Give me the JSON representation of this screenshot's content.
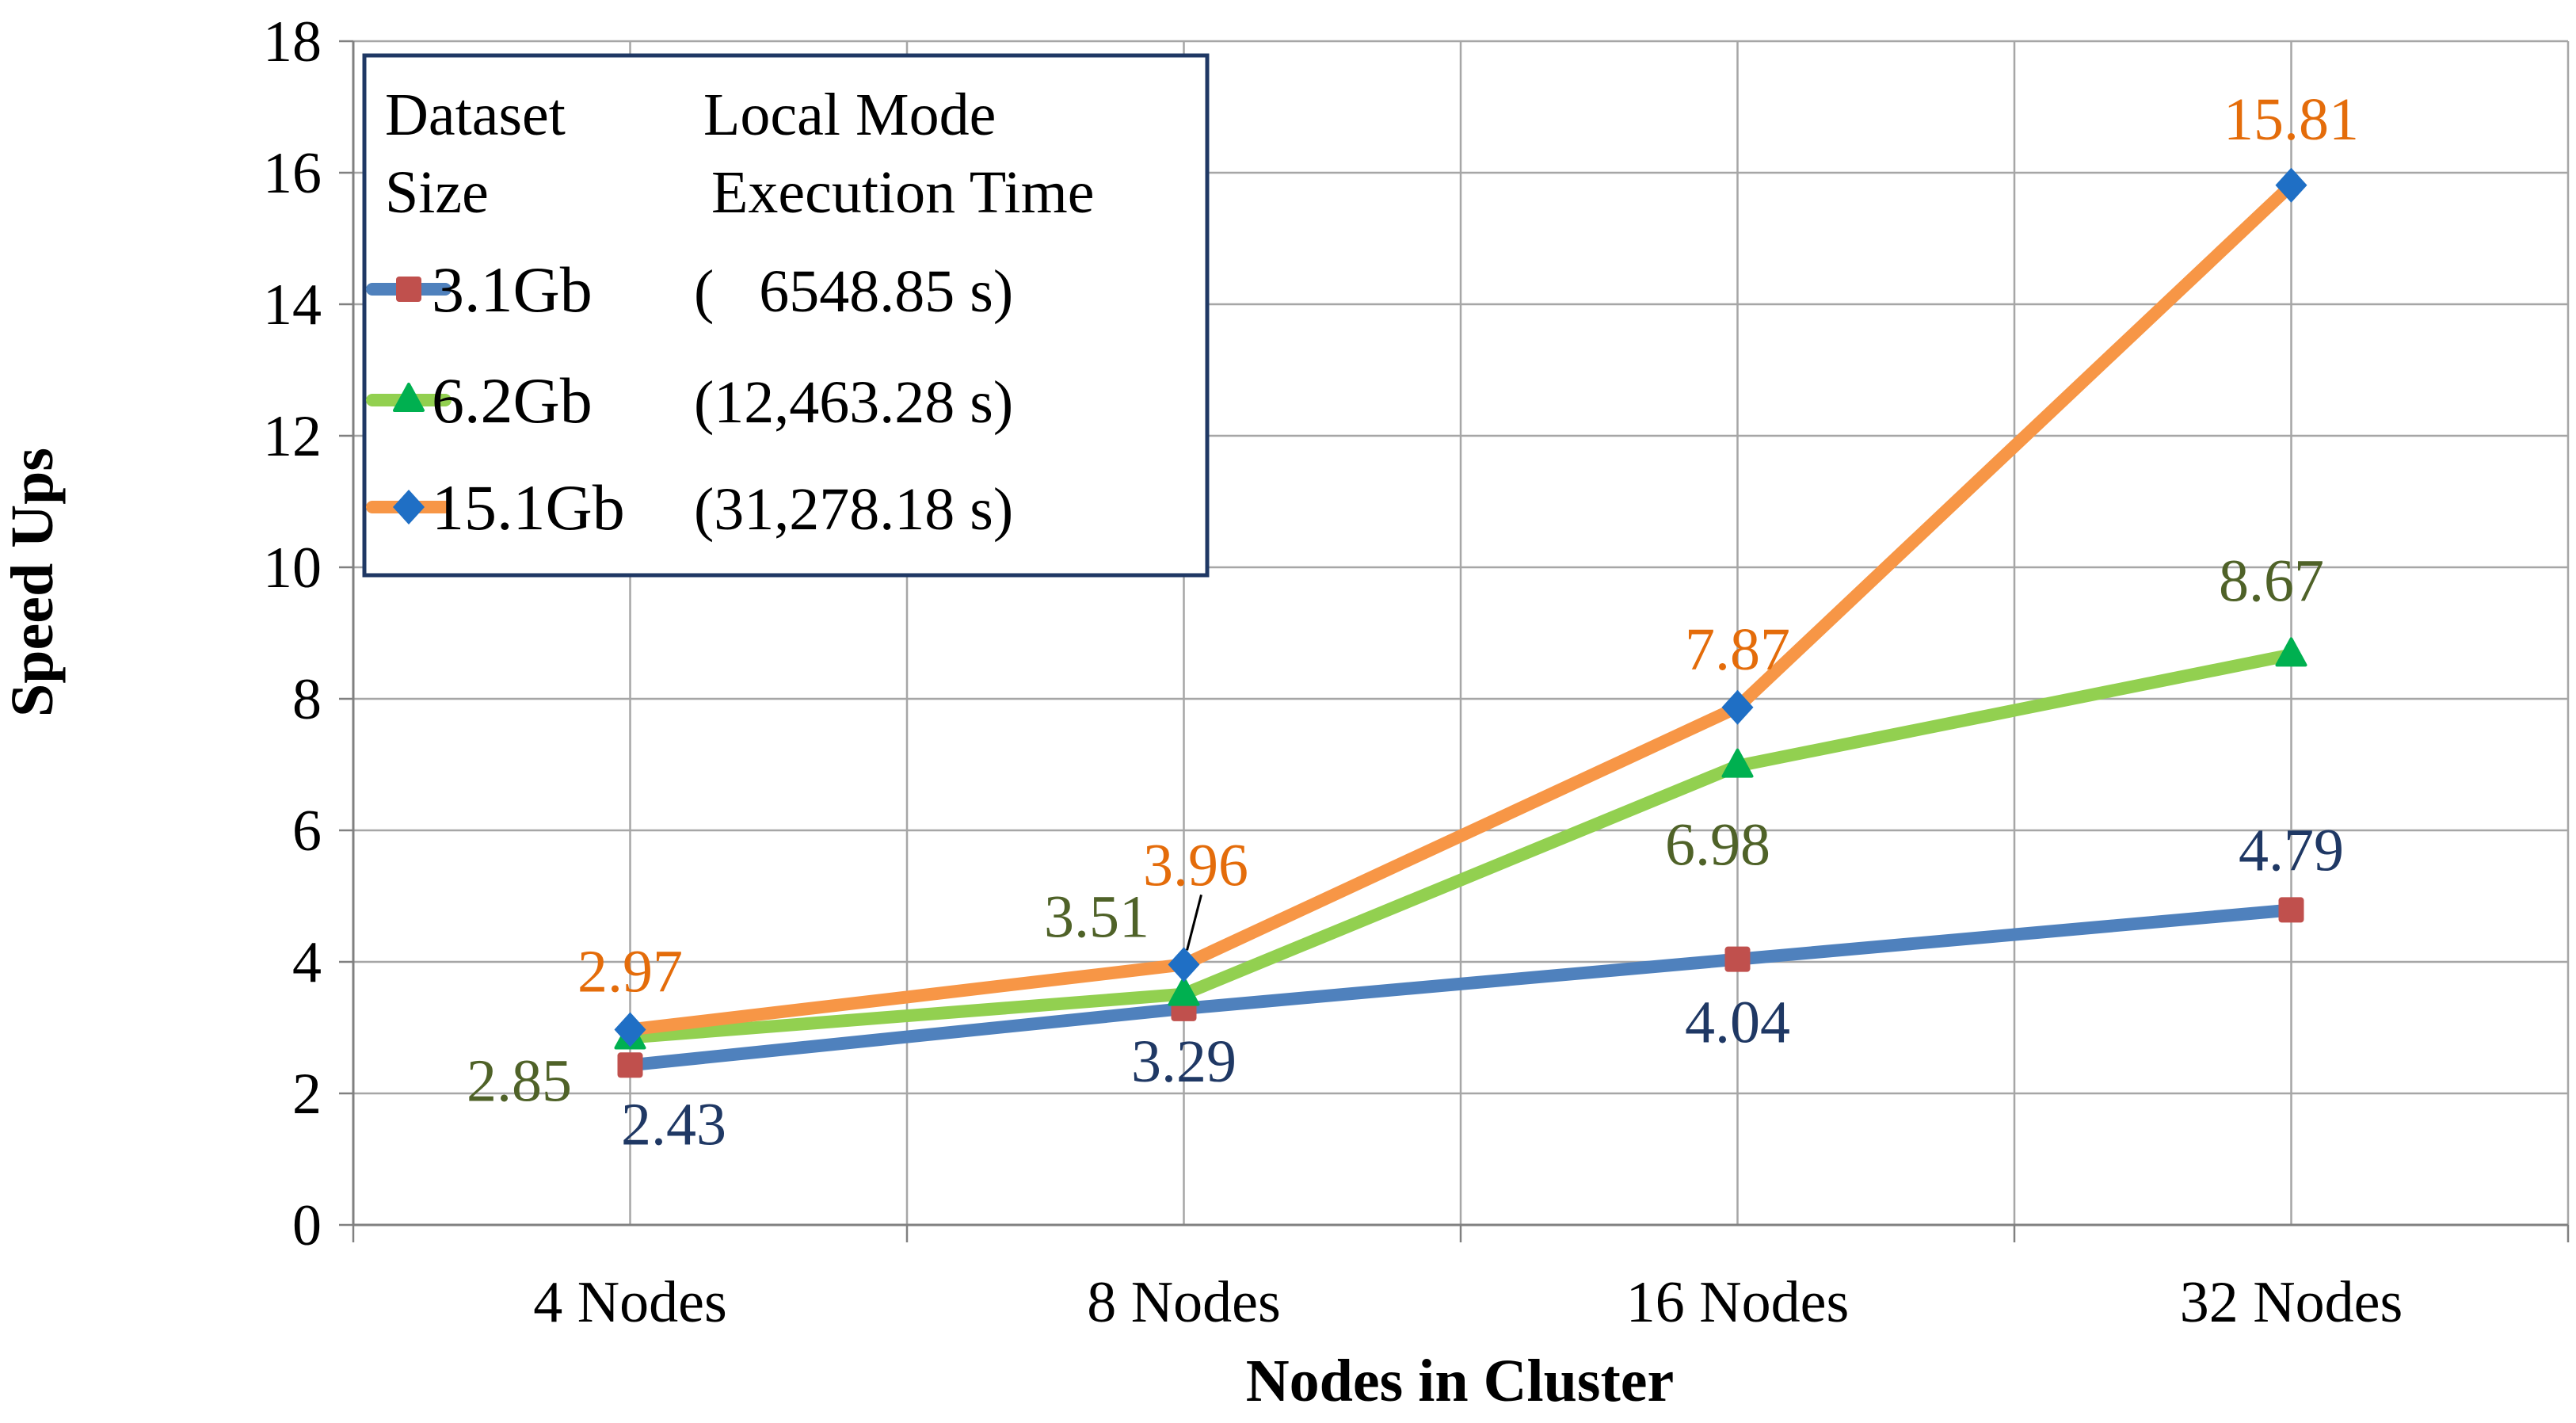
{
  "chart_data": {
    "type": "line",
    "title": "",
    "xlabel": "Nodes in Cluster",
    "ylabel": "Speed Ups",
    "categories": [
      "4 Nodes",
      "8 Nodes",
      "16 Nodes",
      "32 Nodes"
    ],
    "ylim": [
      0,
      18
    ],
    "yticks": [
      "0",
      "2",
      "4",
      "6",
      "8",
      "10",
      "12",
      "14",
      "16",
      "18"
    ],
    "grid": true,
    "legend": {
      "placement": "top-left",
      "header_col1_line1": "Dataset",
      "header_col1_line2": "Size",
      "header_col2_line1": "Local Mode",
      "header_col2_line2": "Execution Time"
    },
    "series": [
      {
        "name": "3.1Gb",
        "exec_time": "(   6548.85 s)",
        "values": [
          2.43,
          3.29,
          4.04,
          4.79
        ],
        "labels": [
          "2.43",
          "3.29",
          "4.04",
          "4.79"
        ],
        "line_color": "#4f81bd",
        "marker_color": "#c0504d",
        "marker": "square",
        "label_color": "#1f3864"
      },
      {
        "name": "6.2Gb",
        "exec_time": "(12,463.28 s)",
        "values": [
          2.85,
          3.51,
          6.98,
          8.67
        ],
        "labels": [
          "2.85",
          "3.51",
          "6.98",
          "8.67"
        ],
        "line_color": "#92d050",
        "marker_color": "#00b050",
        "marker": "triangle",
        "label_color": "#4f6228"
      },
      {
        "name": "15.1Gb",
        "exec_time": "(31,278.18 s)",
        "values": [
          2.97,
          3.96,
          7.87,
          15.81
        ],
        "labels": [
          "2.97",
          "3.96",
          "7.87",
          "15.81"
        ],
        "line_color": "#f79646",
        "marker_color": "#1f6fc5",
        "marker": "diamond",
        "label_color": "#e46c0a"
      }
    ]
  }
}
